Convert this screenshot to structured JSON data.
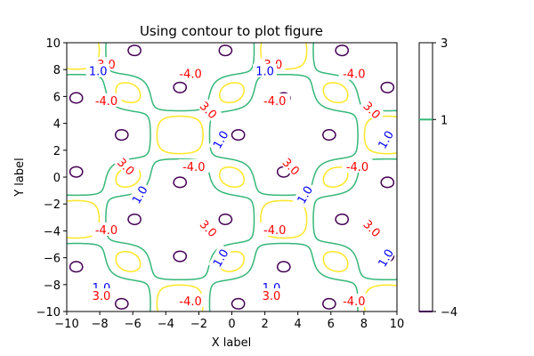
{
  "chart_data": {
    "type": "contour",
    "title": "Using contour to plot figure",
    "xlabel": "X label",
    "ylabel": "Y label",
    "xlim": [
      -10,
      10
    ],
    "ylim": [
      -10,
      10
    ],
    "xticks": [
      -10,
      -8,
      -6,
      -4,
      -2,
      0,
      2,
      4,
      6,
      8,
      10
    ],
    "yticks": [
      -10,
      -8,
      -6,
      -4,
      -2,
      0,
      2,
      4,
      6,
      8,
      10
    ],
    "grid": false,
    "levels": [
      {
        "value": -4.0,
        "label": "-4.0",
        "color": "#440154",
        "label_color": "#ff0000"
      },
      {
        "value": 1.0,
        "label": "1.0",
        "color": "#35b779",
        "label_color": "#0000ff"
      },
      {
        "value": 3.0,
        "label": "3.0",
        "color": "#fde725",
        "label_color": "#ff0000"
      }
    ],
    "contour_labels": [
      {
        "text": "3.0",
        "x": -7.6,
        "y": 8.4,
        "color": "#ff0000",
        "rotation": 0
      },
      {
        "text": "1.0",
        "x": -8.1,
        "y": 7.9,
        "color": "#0000ff",
        "rotation": 0
      },
      {
        "text": "-4.0",
        "x": -2.5,
        "y": 7.7,
        "color": "#ff0000",
        "rotation": 0
      },
      {
        "text": "3.0",
        "x": 2.5,
        "y": 8.4,
        "color": "#ff0000",
        "rotation": 0
      },
      {
        "text": "1.0",
        "x": 2.0,
        "y": 7.9,
        "color": "#0000ff",
        "rotation": 0
      },
      {
        "text": "-4.0",
        "x": 7.4,
        "y": 7.7,
        "color": "#ff0000",
        "rotation": 0
      },
      {
        "text": "-4.0",
        "x": -7.6,
        "y": 5.7,
        "color": "#ff0000",
        "rotation": 0
      },
      {
        "text": "3.0",
        "x": -1.4,
        "y": 5.0,
        "color": "#ff0000",
        "rotation": 45
      },
      {
        "text": "-4.0",
        "x": 2.6,
        "y": 5.7,
        "color": "#ff0000",
        "rotation": 0
      },
      {
        "text": "3.0",
        "x": 8.5,
        "y": 5.0,
        "color": "#ff0000",
        "rotation": 45
      },
      {
        "text": "1.0",
        "x": -0.7,
        "y": 2.8,
        "color": "#0000ff",
        "rotation": -60
      },
      {
        "text": "1.0",
        "x": 9.3,
        "y": 2.8,
        "color": "#0000ff",
        "rotation": -60
      },
      {
        "text": "3.0",
        "x": -6.4,
        "y": 0.8,
        "color": "#ff0000",
        "rotation": 45
      },
      {
        "text": "-4.0",
        "x": -2.3,
        "y": 0.8,
        "color": "#ff0000",
        "rotation": 0
      },
      {
        "text": "3.0",
        "x": 3.6,
        "y": 0.8,
        "color": "#ff0000",
        "rotation": 45
      },
      {
        "text": "-4.0",
        "x": 7.6,
        "y": 0.8,
        "color": "#ff0000",
        "rotation": 0
      },
      {
        "text": "1.0",
        "x": -5.6,
        "y": -1.3,
        "color": "#0000ff",
        "rotation": -60
      },
      {
        "text": "1.0",
        "x": 4.4,
        "y": -1.3,
        "color": "#0000ff",
        "rotation": -60
      },
      {
        "text": "-4.0",
        "x": -7.6,
        "y": -3.9,
        "color": "#ff0000",
        "rotation": 0
      },
      {
        "text": "3.0",
        "x": -1.4,
        "y": -3.8,
        "color": "#ff0000",
        "rotation": 45
      },
      {
        "text": "-4.0",
        "x": 2.6,
        "y": -3.9,
        "color": "#ff0000",
        "rotation": 0
      },
      {
        "text": "3.0",
        "x": 8.5,
        "y": -3.8,
        "color": "#ff0000",
        "rotation": 45
      },
      {
        "text": "1.0",
        "x": -0.7,
        "y": -6.0,
        "color": "#0000ff",
        "rotation": -60
      },
      {
        "text": "1.0",
        "x": 9.3,
        "y": -6.0,
        "color": "#0000ff",
        "rotation": -60
      },
      {
        "text": "1.0",
        "x": -7.9,
        "y": -8.2,
        "color": "#0000ff",
        "rotation": 0
      },
      {
        "text": "3.0",
        "x": -7.9,
        "y": -8.8,
        "color": "#ff0000",
        "rotation": 0
      },
      {
        "text": "-4.0",
        "x": -2.5,
        "y": -9.2,
        "color": "#ff0000",
        "rotation": 0
      },
      {
        "text": "1.0",
        "x": 2.4,
        "y": -8.2,
        "color": "#0000ff",
        "rotation": 0
      },
      {
        "text": "3.0",
        "x": 2.4,
        "y": -8.8,
        "color": "#ff0000",
        "rotation": 0
      },
      {
        "text": "-4.0",
        "x": 7.4,
        "y": -9.2,
        "color": "#ff0000",
        "rotation": 0
      }
    ],
    "colorbar": {
      "ticks": [
        "3",
        "1",
        "-4"
      ],
      "range": [
        -4,
        3
      ],
      "level_marks": [
        {
          "value": 1.0,
          "color": "#35b779"
        },
        {
          "value": -4.0,
          "color": "#440154"
        }
      ]
    }
  }
}
